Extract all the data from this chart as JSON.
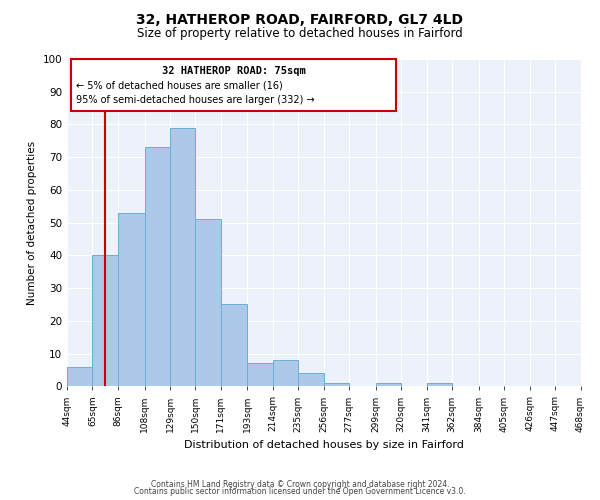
{
  "title": "32, HATHEROP ROAD, FAIRFORD, GL7 4LD",
  "subtitle": "Size of property relative to detached houses in Fairford",
  "xlabel": "Distribution of detached houses by size in Fairford",
  "ylabel": "Number of detached properties",
  "bar_values": [
    6,
    40,
    53,
    73,
    79,
    51,
    25,
    7,
    8,
    4,
    1,
    0,
    1,
    0,
    1,
    0,
    0,
    0,
    0,
    0
  ],
  "bin_edges_numeric": [
    44,
    65,
    86,
    108,
    129,
    150,
    171,
    193,
    214,
    235,
    256,
    277,
    299,
    320,
    341,
    362,
    384,
    405,
    426,
    447,
    468
  ],
  "bin_labels": [
    "44sqm",
    "65sqm",
    "86sqm",
    "108sqm",
    "129sqm",
    "150sqm",
    "171sqm",
    "193sqm",
    "214sqm",
    "235sqm",
    "256sqm",
    "277sqm",
    "299sqm",
    "320sqm",
    "341sqm",
    "362sqm",
    "384sqm",
    "405sqm",
    "426sqm",
    "447sqm",
    "468sqm"
  ],
  "bar_color": "#adc9ea",
  "bar_edge_color": "#6aaed6",
  "vline_x": 75,
  "vline_color": "#cc0000",
  "annotation_title": "32 HATHEROP ROAD: 75sqm",
  "annotation_line1": "← 5% of detached houses are smaller (16)",
  "annotation_line2": "95% of semi-detached houses are larger (332) →",
  "annotation_box_color": "#cc0000",
  "ylim": [
    0,
    100
  ],
  "yticks": [
    0,
    10,
    20,
    30,
    40,
    50,
    60,
    70,
    80,
    90,
    100
  ],
  "footer1": "Contains HM Land Registry data © Crown copyright and database right 2024.",
  "footer2": "Contains public sector information licensed under the Open Government Licence v3.0.",
  "bg_color": "#edf2fa",
  "grid_color": "#ffffff",
  "title_fontsize": 10,
  "subtitle_fontsize": 8.5
}
